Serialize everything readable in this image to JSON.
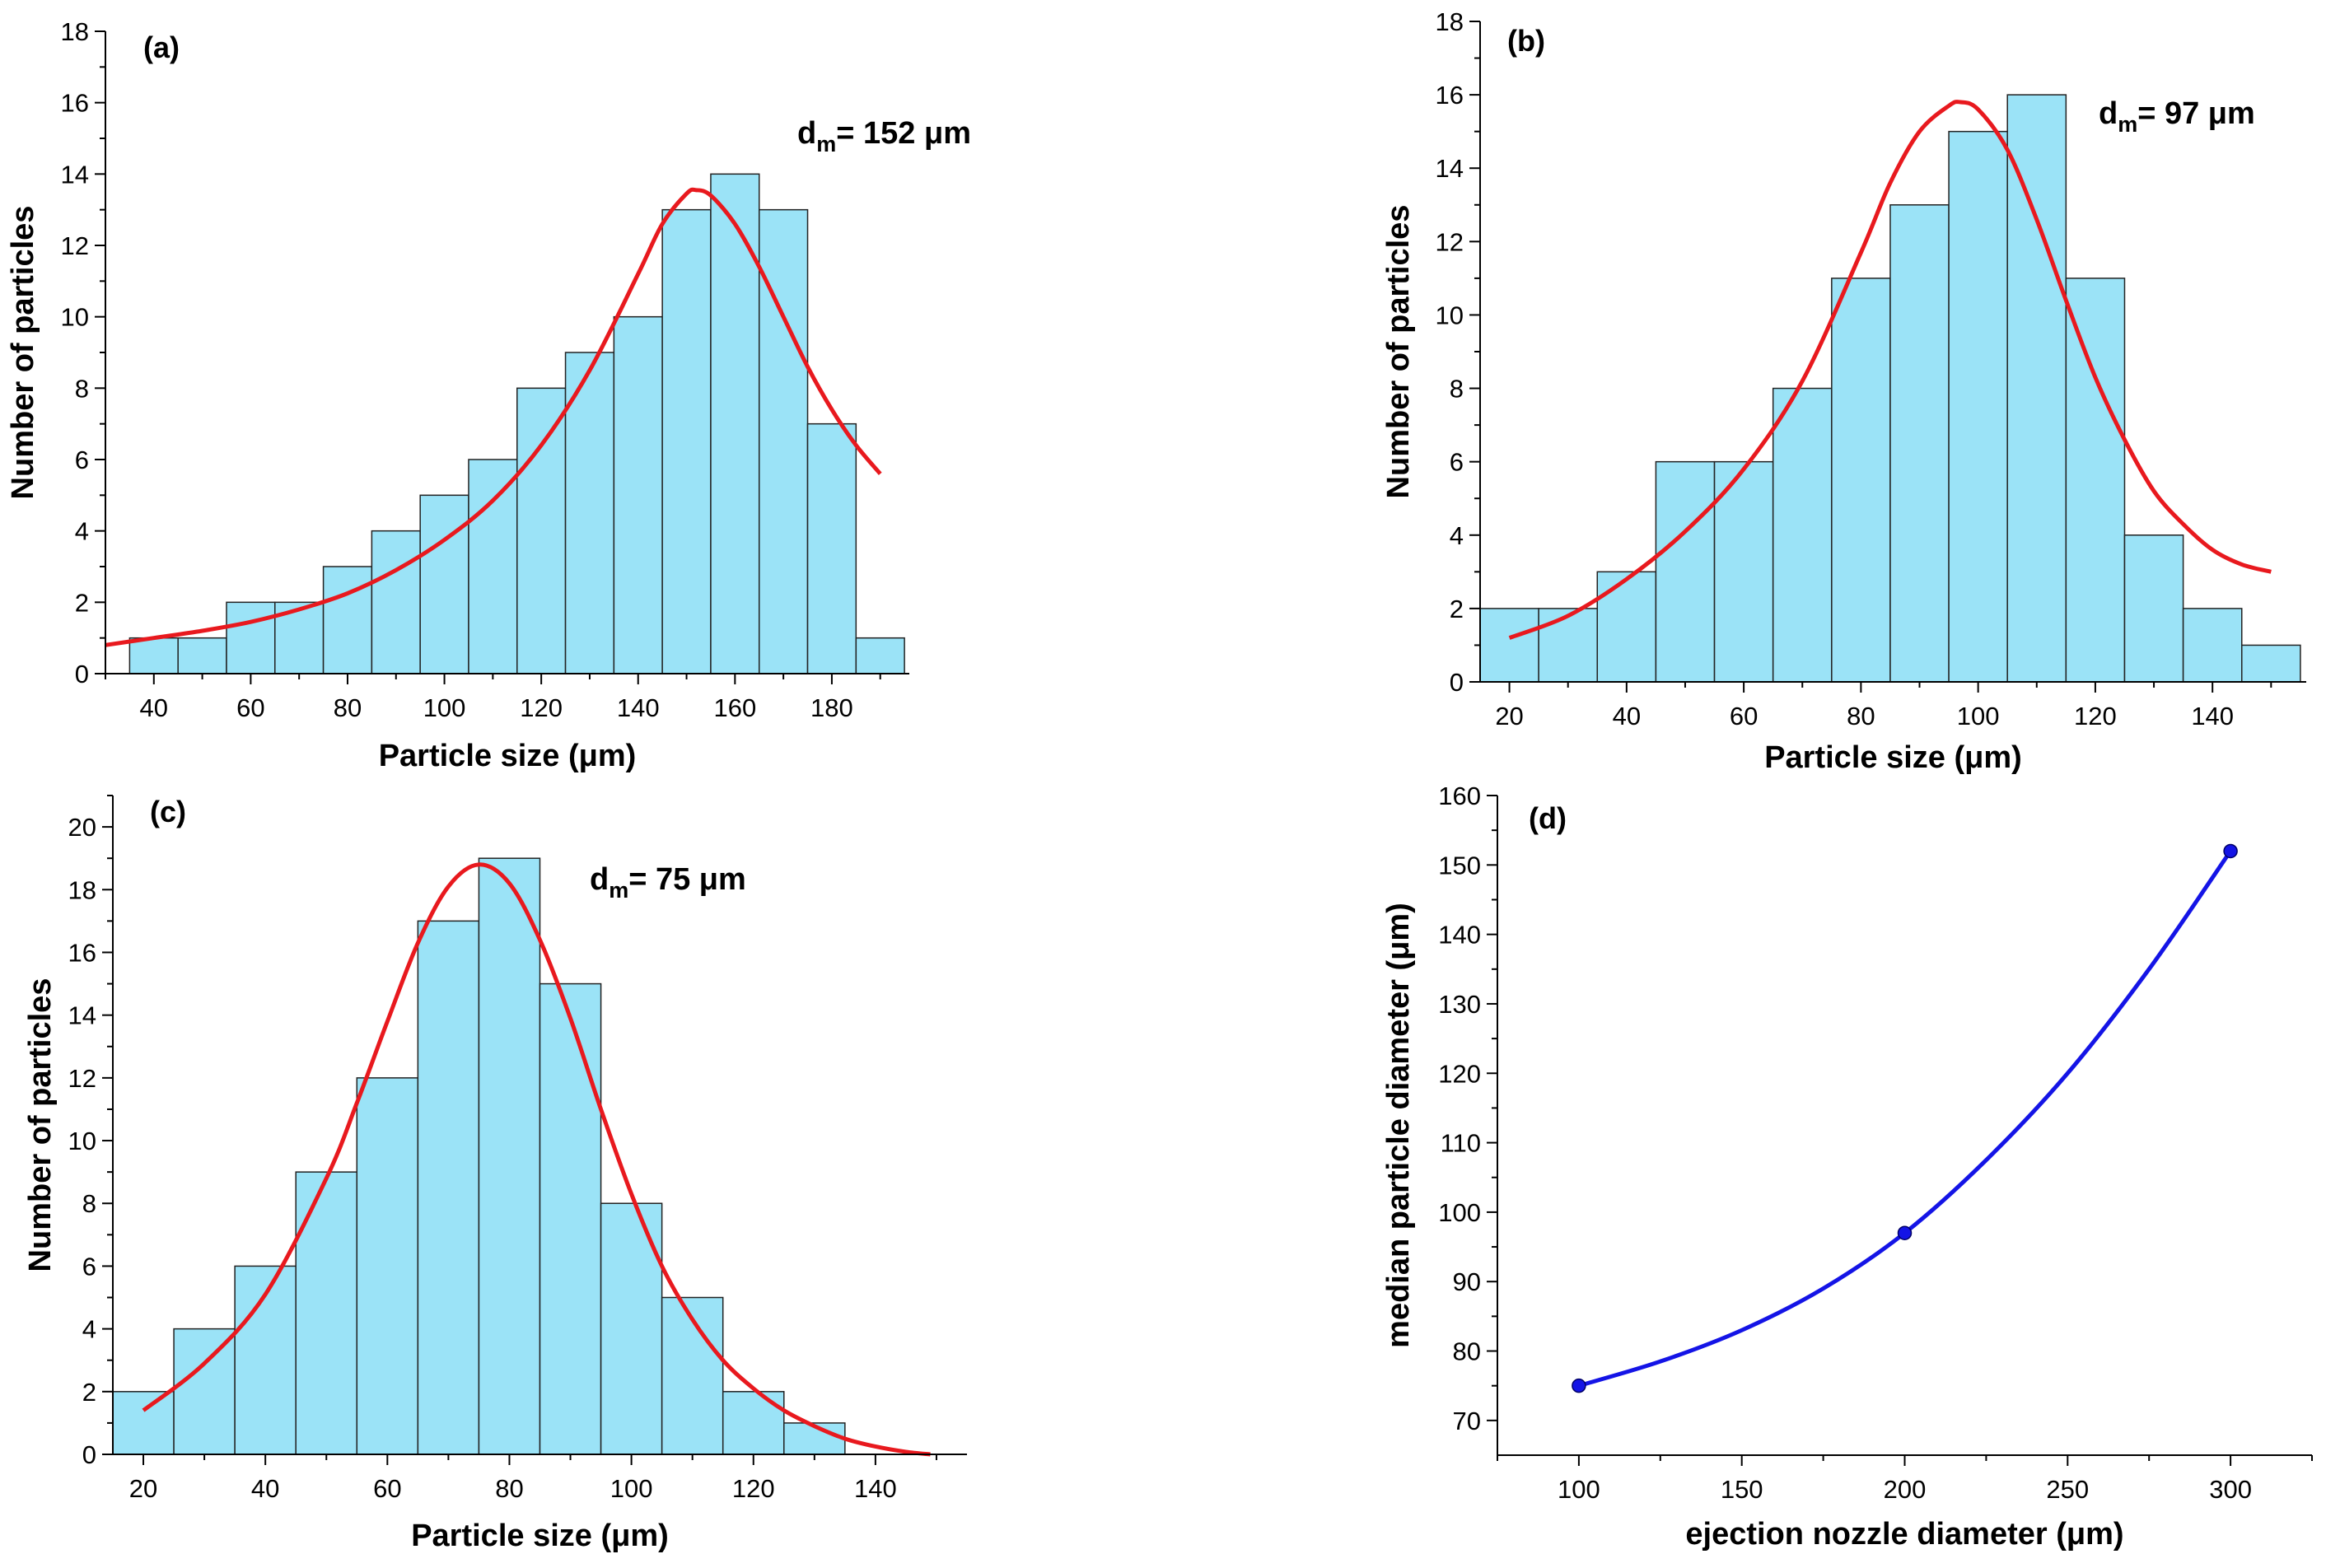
{
  "figure": {
    "panels": [
      "a",
      "b",
      "c",
      "d"
    ]
  },
  "colors": {
    "bar_fill": "#9be3f7",
    "bar_stroke": "#222222",
    "fit_curve": "#e8191e",
    "line_series": "#1414e6",
    "marker": "#1414e6"
  },
  "chart_data": [
    {
      "id": "a",
      "type": "bar",
      "panel_label": "(a)",
      "annotation": {
        "prefix": "d",
        "sub": "m",
        "text": "= 152 μm"
      },
      "xlabel": "Particle size (μm)",
      "ylabel": "Number of particles",
      "xlim": [
        30,
        196
      ],
      "ylim": [
        0,
        18
      ],
      "xticks": [
        40,
        60,
        80,
        100,
        120,
        140,
        160,
        180
      ],
      "yticks": [
        0,
        2,
        4,
        6,
        8,
        10,
        12,
        14,
        16,
        18
      ],
      "bins": [
        {
          "start": 35,
          "end": 45,
          "value": 1
        },
        {
          "start": 45,
          "end": 55,
          "value": 1
        },
        {
          "start": 55,
          "end": 65,
          "value": 2
        },
        {
          "start": 65,
          "end": 75,
          "value": 2
        },
        {
          "start": 75,
          "end": 85,
          "value": 3
        },
        {
          "start": 85,
          "end": 95,
          "value": 4
        },
        {
          "start": 95,
          "end": 105,
          "value": 5
        },
        {
          "start": 105,
          "end": 115,
          "value": 6
        },
        {
          "start": 115,
          "end": 125,
          "value": 8
        },
        {
          "start": 125,
          "end": 135,
          "value": 9
        },
        {
          "start": 135,
          "end": 145,
          "value": 10
        },
        {
          "start": 145,
          "end": 155,
          "value": 13
        },
        {
          "start": 155,
          "end": 165,
          "value": 14
        },
        {
          "start": 165,
          "end": 175,
          "value": 13
        },
        {
          "start": 175,
          "end": 185,
          "value": 7
        },
        {
          "start": 185,
          "end": 195,
          "value": 1
        }
      ],
      "fit_curve": {
        "x": [
          30,
          40,
          50,
          60,
          70,
          80,
          90,
          100,
          110,
          120,
          130,
          140,
          145,
          150,
          152,
          155,
          160,
          165,
          170,
          175,
          180,
          185,
          190
        ],
        "y": [
          0.8,
          1.0,
          1.2,
          1.45,
          1.8,
          2.25,
          2.9,
          3.75,
          4.85,
          6.4,
          8.5,
          11.2,
          12.6,
          13.45,
          13.55,
          13.4,
          12.6,
          11.4,
          10.0,
          8.6,
          7.4,
          6.4,
          5.6
        ]
      }
    },
    {
      "id": "b",
      "type": "bar",
      "panel_label": "(b)",
      "annotation": {
        "prefix": "d",
        "sub": "m",
        "text": "= 97 μm"
      },
      "xlabel": "Particle size (μm)",
      "ylabel": "Number of particles",
      "xlim": [
        15,
        156
      ],
      "ylim": [
        0,
        18
      ],
      "xticks": [
        20,
        40,
        60,
        80,
        100,
        120,
        140
      ],
      "yticks": [
        0,
        2,
        4,
        6,
        8,
        10,
        12,
        14,
        16,
        18
      ],
      "bins": [
        {
          "start": 15,
          "end": 25,
          "value": 2
        },
        {
          "start": 25,
          "end": 35,
          "value": 2
        },
        {
          "start": 35,
          "end": 45,
          "value": 3
        },
        {
          "start": 45,
          "end": 55,
          "value": 6
        },
        {
          "start": 55,
          "end": 65,
          "value": 6
        },
        {
          "start": 65,
          "end": 75,
          "value": 8
        },
        {
          "start": 75,
          "end": 85,
          "value": 11
        },
        {
          "start": 85,
          "end": 95,
          "value": 13
        },
        {
          "start": 95,
          "end": 105,
          "value": 15
        },
        {
          "start": 105,
          "end": 115,
          "value": 16
        },
        {
          "start": 115,
          "end": 125,
          "value": 11
        },
        {
          "start": 125,
          "end": 135,
          "value": 4
        },
        {
          "start": 135,
          "end": 145,
          "value": 2
        },
        {
          "start": 145,
          "end": 155,
          "value": 1
        }
      ],
      "fit_curve": {
        "x": [
          20,
          30,
          40,
          50,
          60,
          70,
          80,
          85,
          90,
          95,
          97,
          100,
          105,
          110,
          115,
          120,
          125,
          130,
          135,
          140,
          145,
          150
        ],
        "y": [
          1.2,
          1.8,
          2.8,
          4.1,
          5.8,
          8.2,
          11.7,
          13.6,
          15.0,
          15.7,
          15.8,
          15.6,
          14.5,
          12.6,
          10.4,
          8.3,
          6.6,
          5.2,
          4.3,
          3.6,
          3.2,
          3.0
        ]
      }
    },
    {
      "id": "c",
      "type": "bar",
      "panel_label": "(c)",
      "annotation": {
        "prefix": "d",
        "sub": "m",
        "text": "= 75 μm"
      },
      "xlabel": "Particle size (μm)",
      "ylabel": "Number of particles",
      "xlim": [
        15,
        155
      ],
      "ylim": [
        0,
        21
      ],
      "xticks": [
        20,
        40,
        60,
        80,
        100,
        120,
        140
      ],
      "yticks": [
        0,
        2,
        4,
        6,
        8,
        10,
        12,
        14,
        16,
        18,
        20
      ],
      "bins": [
        {
          "start": 15,
          "end": 25,
          "value": 2
        },
        {
          "start": 25,
          "end": 35,
          "value": 4
        },
        {
          "start": 35,
          "end": 45,
          "value": 6
        },
        {
          "start": 45,
          "end": 55,
          "value": 9
        },
        {
          "start": 55,
          "end": 65,
          "value": 12
        },
        {
          "start": 65,
          "end": 75,
          "value": 17
        },
        {
          "start": 75,
          "end": 85,
          "value": 19
        },
        {
          "start": 85,
          "end": 95,
          "value": 15
        },
        {
          "start": 95,
          "end": 105,
          "value": 8
        },
        {
          "start": 105,
          "end": 115,
          "value": 5
        },
        {
          "start": 115,
          "end": 125,
          "value": 2
        },
        {
          "start": 125,
          "end": 135,
          "value": 1
        }
      ],
      "fit_curve": {
        "x": [
          20,
          30,
          40,
          50,
          55,
          60,
          65,
          70,
          75,
          80,
          85,
          90,
          95,
          100,
          105,
          110,
          115,
          120,
          125,
          130,
          135,
          140,
          145,
          149
        ],
        "y": [
          1.4,
          2.9,
          5.1,
          8.8,
          11.2,
          13.8,
          16.3,
          18.1,
          18.8,
          18.2,
          16.4,
          13.9,
          11.0,
          8.3,
          6.0,
          4.3,
          3.0,
          2.1,
          1.4,
          0.9,
          0.5,
          0.25,
          0.08,
          0.0
        ]
      }
    },
    {
      "id": "d",
      "type": "line",
      "panel_label": "(d)",
      "xlabel": "ejection nozzle diameter (μm)",
      "ylabel": "median particle diameter (μm)",
      "xlim": [
        75,
        325
      ],
      "ylim": [
        65,
        160
      ],
      "xticks": [
        100,
        150,
        200,
        250,
        300
      ],
      "yticks": [
        70,
        80,
        90,
        100,
        110,
        120,
        130,
        140,
        150,
        160
      ],
      "points": {
        "x": [
          100,
          200,
          300
        ],
        "y": [
          75,
          97,
          152
        ]
      },
      "smooth_curve": {
        "x": [
          100,
          125,
          150,
          175,
          200,
          225,
          250,
          275,
          300
        ],
        "y": [
          75,
          78.5,
          83,
          89,
          97,
          107.5,
          120,
          135,
          152
        ]
      }
    }
  ]
}
